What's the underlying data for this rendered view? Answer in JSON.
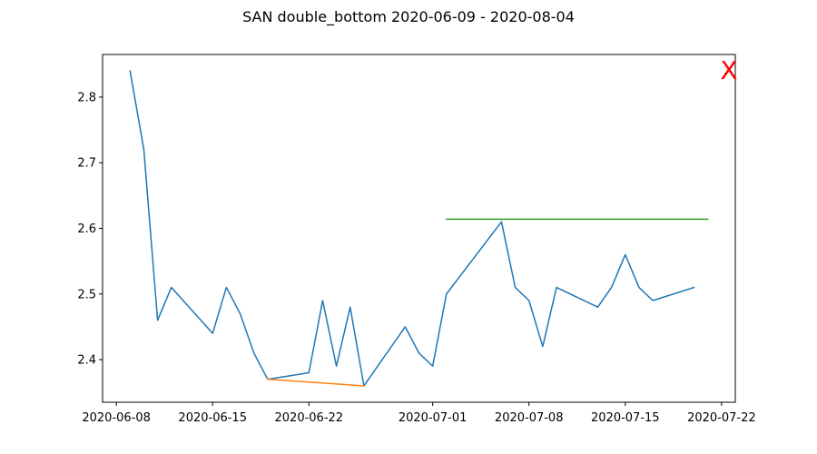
{
  "chart_data": {
    "type": "line",
    "title": "SAN double_bottom 2020-06-09 - 2020-08-04",
    "xlabel": "",
    "ylabel": "",
    "x_axis": {
      "type": "date",
      "range": [
        "2020-06-07",
        "2020-07-23"
      ],
      "ticks": [
        "2020-06-08",
        "2020-06-15",
        "2020-06-22",
        "2020-07-01",
        "2020-07-08",
        "2020-07-15",
        "2020-07-22"
      ]
    },
    "y_axis": {
      "range": [
        2.335,
        2.865
      ],
      "ticks": [
        "2.4",
        "2.5",
        "2.6",
        "2.7",
        "2.8"
      ]
    },
    "grid": false,
    "series": [
      {
        "color": "#1f77b4",
        "x": [
          "2020-06-09",
          "2020-06-10",
          "2020-06-11",
          "2020-06-12",
          "2020-06-15",
          "2020-06-16",
          "2020-06-17",
          "2020-06-18",
          "2020-06-19",
          "2020-06-22",
          "2020-06-23",
          "2020-06-24",
          "2020-06-25",
          "2020-06-26",
          "2020-06-29",
          "2020-06-30",
          "2020-07-01",
          "2020-07-02",
          "2020-07-06",
          "2020-07-07",
          "2020-07-08",
          "2020-07-09",
          "2020-07-10",
          "2020-07-13",
          "2020-07-14",
          "2020-07-15",
          "2020-07-16",
          "2020-07-17",
          "2020-07-20"
        ],
        "values": [
          2.84,
          2.72,
          2.46,
          2.51,
          2.44,
          2.51,
          2.47,
          2.41,
          2.37,
          2.38,
          2.49,
          2.39,
          2.48,
          2.36,
          2.45,
          2.41,
          2.39,
          2.5,
          2.61,
          2.51,
          2.49,
          2.42,
          2.51,
          2.48,
          2.51,
          2.56,
          2.51,
          2.49,
          2.51
        ]
      },
      {
        "color": "#ff7f0e",
        "x": [
          "2020-06-19",
          "2020-06-26"
        ],
        "values": [
          2.37,
          2.36
        ]
      },
      {
        "color": "#2ca02c",
        "x": [
          "2020-07-02",
          "2020-07-21"
        ],
        "values": [
          2.614,
          2.614
        ]
      }
    ],
    "annotations": [
      {
        "text": "X",
        "color": "#ff0000",
        "position": "top-right outside plot"
      }
    ]
  }
}
